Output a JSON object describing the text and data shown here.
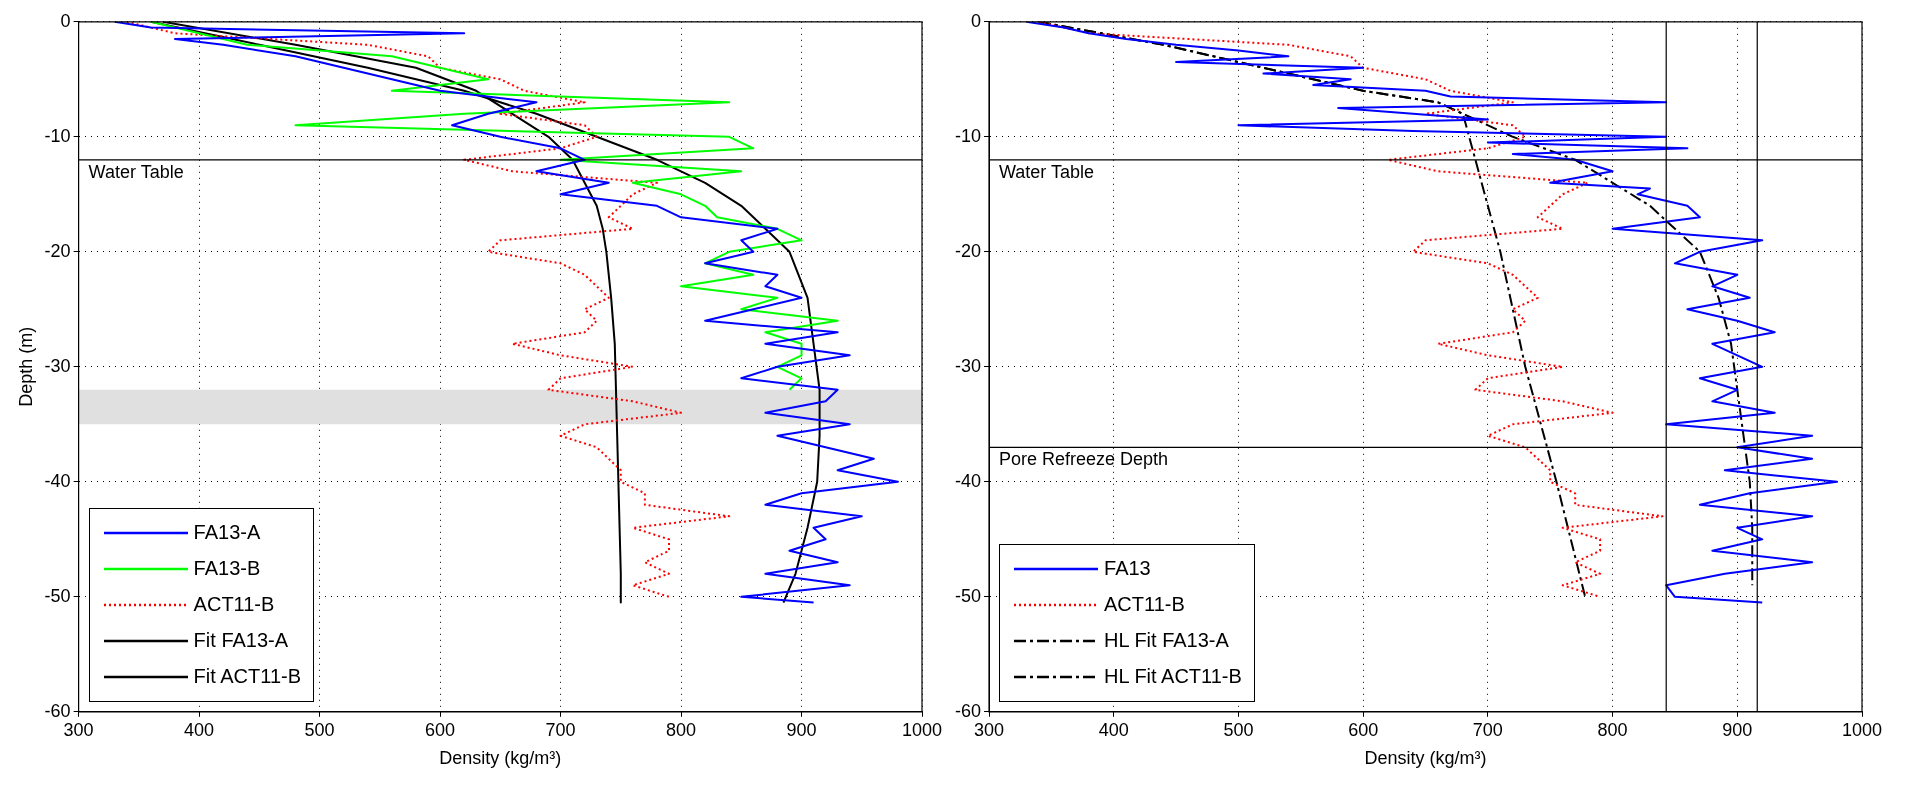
{
  "chart_data": [
    {
      "type": "line",
      "xlabel": "Density (kg/m³)",
      "ylabel": "Depth (m)",
      "xlim": [
        300,
        1000
      ],
      "xticks": [
        300,
        400,
        500,
        600,
        700,
        800,
        900,
        1000
      ],
      "ylim": [
        -60,
        0
      ],
      "yticks": [
        -60,
        -50,
        -40,
        -30,
        -20,
        -10,
        0
      ],
      "grid": true,
      "legend": "bottom left",
      "series": [
        {
          "name": "FA13-A",
          "color": "#0000ff",
          "line_style": "solid",
          "x": [
            330,
            360,
            620,
            380,
            420,
            480,
            520,
            560,
            600,
            680,
            640,
            610,
            650,
            700,
            720,
            680,
            740,
            700,
            780,
            800,
            880,
            850,
            860,
            820,
            880,
            870,
            900,
            860,
            820,
            930,
            870,
            940,
            880,
            850,
            930,
            920,
            870,
            940,
            880,
            920,
            960,
            930,
            980,
            900,
            870,
            950,
            910,
            920,
            890,
            930,
            870,
            940,
            850,
            910
          ],
          "values": [
            0,
            -0.5,
            -1,
            -1.5,
            -2,
            -3,
            -4,
            -5,
            -6,
            -7,
            -8,
            -9,
            -10,
            -11,
            -12,
            -13,
            -14,
            -15,
            -16,
            -17,
            -18,
            -19,
            -20,
            -21,
            -22,
            -23,
            -24,
            -25,
            -26,
            -27,
            -28,
            -29,
            -30,
            -31,
            -32,
            -33,
            -34,
            -35,
            -36,
            -37,
            -38,
            -39,
            -40,
            -41,
            -42,
            -43,
            -44,
            -45,
            -46,
            -47,
            -48,
            -49,
            -50,
            -50.5
          ]
        },
        {
          "name": "FA13-B",
          "color": "#00ff00",
          "line_style": "solid",
          "x": [
            360,
            400,
            440,
            560,
            600,
            640,
            560,
            840,
            620,
            480,
            840,
            860,
            700,
            850,
            760,
            800,
            820,
            830,
            880,
            900,
            840,
            820,
            860,
            800,
            880,
            850,
            930,
            870,
            900,
            900,
            880,
            900,
            890
          ],
          "values": [
            0,
            -1,
            -2,
            -3,
            -4,
            -5,
            -6,
            -7,
            -8,
            -9,
            -10,
            -11,
            -12,
            -13,
            -14,
            -15,
            -16,
            -17,
            -18,
            -19,
            -20,
            -21,
            -22,
            -23,
            -24,
            -25,
            -26,
            -27,
            -28,
            -29,
            -30,
            -31,
            -32
          ]
        },
        {
          "name": "ACT11-B",
          "color": "#ff0000",
          "line_style": "dotted",
          "x": [
            340,
            380,
            540,
            590,
            600,
            650,
            670,
            720,
            650,
            720,
            730,
            700,
            620,
            660,
            780,
            760,
            750,
            740,
            760,
            650,
            640,
            700,
            720,
            730,
            740,
            720,
            730,
            720,
            660,
            700,
            760,
            700,
            690,
            760,
            800,
            720,
            700,
            730,
            740,
            750,
            750,
            770,
            770,
            840,
            760,
            790,
            790,
            770,
            790,
            760,
            790
          ],
          "values": [
            0,
            -1,
            -2,
            -3,
            -4,
            -5,
            -6,
            -7,
            -8,
            -9,
            -10,
            -11,
            -12,
            -13,
            -14,
            -15,
            -16,
            -17,
            -18,
            -19,
            -20,
            -21,
            -22,
            -23,
            -24,
            -25,
            -26,
            -27,
            -28,
            -29,
            -30,
            -31,
            -32,
            -33,
            -34,
            -35,
            -36,
            -37,
            -38,
            -39,
            -40,
            -41,
            -42,
            -43,
            -44,
            -45,
            -46,
            -47,
            -48,
            -49,
            -50
          ]
        },
        {
          "name": "Fit FA13-A",
          "color": "#000000",
          "line_style": "solid",
          "x": [
            360,
            450,
            540,
            620,
            680,
            730,
            780,
            820,
            850,
            870,
            890,
            905,
            910,
            915,
            915,
            913,
            905,
            895,
            885
          ],
          "values": [
            0,
            -2,
            -4,
            -6,
            -8,
            -10,
            -12,
            -14,
            -16,
            -18,
            -20,
            -24,
            -28,
            -32,
            -36,
            -40,
            -44,
            -48,
            -50.5
          ]
        },
        {
          "name": "Fit ACT11-B",
          "color": "#000000",
          "line_style": "solid",
          "x": [
            370,
            480,
            580,
            630,
            660,
            690,
            710,
            720,
            730,
            735,
            738,
            742,
            745,
            746,
            747,
            748,
            749,
            750,
            750
          ],
          "values": [
            0,
            -2,
            -4,
            -6,
            -8,
            -10,
            -12,
            -14,
            -16,
            -18,
            -20,
            -24,
            -28,
            -32,
            -36,
            -40,
            -44,
            -48,
            -50.5
          ]
        }
      ],
      "ref_lines": [
        {
          "axis": "y",
          "value": -12,
          "label": "Water Table",
          "color": "#000000",
          "line_style": "solid"
        }
      ],
      "bands": [
        {
          "axis": "y",
          "from": -35,
          "to": -32,
          "color": "#e0e0e0"
        }
      ]
    },
    {
      "type": "line",
      "xlabel": "Density (kg/m³)",
      "xlim": [
        300,
        1000
      ],
      "xticks": [
        300,
        400,
        500,
        600,
        700,
        800,
        900,
        1000
      ],
      "ylim": [
        -60,
        0
      ],
      "yticks": [
        -60,
        -50,
        -40,
        -30,
        -20,
        -10,
        0
      ],
      "grid": true,
      "legend": "bottom left",
      "series": [
        {
          "name": "FA13",
          "color": "#0000ff",
          "line_style": "solid",
          "x": [
            330,
            360,
            380,
            410,
            450,
            500,
            540,
            450,
            600,
            520,
            590,
            560,
            650,
            670,
            843,
            580,
            640,
            700,
            500,
            640,
            843,
            700,
            860,
            720,
            770,
            800,
            750,
            830,
            820,
            860,
            870,
            800,
            920,
            870,
            850,
            900,
            880,
            910,
            860,
            900,
            930,
            880,
            900,
            920,
            870,
            900,
            880,
            930,
            843,
            960,
            900,
            960,
            890,
            980,
            910,
            870,
            960,
            900,
            920,
            880,
            960,
            890,
            843,
            850,
            920
          ],
          "values": [
            0,
            -0.5,
            -1,
            -1.5,
            -2,
            -2.5,
            -3,
            -3.5,
            -4,
            -4.5,
            -5,
            -5.5,
            -6,
            -6.5,
            -7,
            -7.5,
            -8,
            -8.5,
            -9,
            -9.5,
            -10,
            -10.5,
            -11,
            -11.5,
            -12,
            -13,
            -14,
            -14.5,
            -15,
            -16,
            -17,
            -18,
            -19,
            -20,
            -21,
            -22,
            -23,
            -24,
            -25,
            -26,
            -27,
            -28,
            -29,
            -30,
            -31,
            -32,
            -33,
            -34,
            -35,
            -36,
            -37,
            -38,
            -39,
            -40,
            -41,
            -42,
            -43,
            -44,
            -45,
            -46,
            -47,
            -48,
            -49,
            -50,
            -50.5
          ]
        },
        {
          "name": "ACT11-B",
          "color": "#ff0000",
          "line_style": "dotted",
          "x": [
            340,
            380,
            540,
            590,
            600,
            650,
            670,
            720,
            650,
            720,
            730,
            700,
            620,
            660,
            780,
            760,
            750,
            740,
            760,
            650,
            640,
            700,
            720,
            730,
            740,
            720,
            730,
            720,
            660,
            700,
            760,
            700,
            690,
            760,
            800,
            720,
            700,
            730,
            740,
            750,
            750,
            770,
            770,
            840,
            760,
            790,
            790,
            770,
            790,
            760,
            790
          ],
          "values": [
            0,
            -1,
            -2,
            -3,
            -4,
            -5,
            -6,
            -7,
            -8,
            -9,
            -10,
            -11,
            -12,
            -13,
            -14,
            -15,
            -16,
            -17,
            -18,
            -19,
            -20,
            -21,
            -22,
            -23,
            -24,
            -25,
            -26,
            -27,
            -28,
            -29,
            -30,
            -31,
            -32,
            -33,
            -34,
            -35,
            -36,
            -37,
            -38,
            -39,
            -40,
            -41,
            -42,
            -43,
            -44,
            -45,
            -46,
            -47,
            -48,
            -49,
            -50
          ]
        },
        {
          "name": "HL Fit FA13-A",
          "color": "#000000",
          "line_style": "dashed",
          "x": [
            340,
            440,
            520,
            600,
            660,
            680,
            720,
            770,
            800,
            830,
            850,
            870,
            885,
            895,
            900,
            905,
            910,
            912,
            912
          ],
          "values": [
            0,
            -2,
            -4,
            -6,
            -7,
            -8,
            -10,
            -12,
            -14,
            -16,
            -18,
            -20,
            -24,
            -28,
            -32,
            -36,
            -40,
            -44,
            -49
          ]
        },
        {
          "name": "HL Fit ACT11-B",
          "color": "#000000",
          "line_style": "dashed",
          "x": [
            340,
            440,
            520,
            600,
            660,
            680,
            690,
            710,
            730,
            745,
            755,
            778
          ],
          "values": [
            0,
            -2,
            -4,
            -6,
            -7,
            -8,
            -12,
            -20,
            -30,
            -36,
            -40,
            -50
          ]
        }
      ],
      "ref_lines": [
        {
          "axis": "y",
          "value": -12,
          "label": "Water Table",
          "color": "#000000",
          "line_style": "solid"
        },
        {
          "axis": "y",
          "value": -37,
          "label": "Pore Refreeze Depth",
          "color": "#000000",
          "line_style": "solid"
        },
        {
          "axis": "x",
          "value": 843,
          "color": "#000000",
          "line_style": "solid"
        },
        {
          "axis": "x",
          "value": 916,
          "color": "#000000",
          "line_style": "solid"
        }
      ]
    }
  ]
}
